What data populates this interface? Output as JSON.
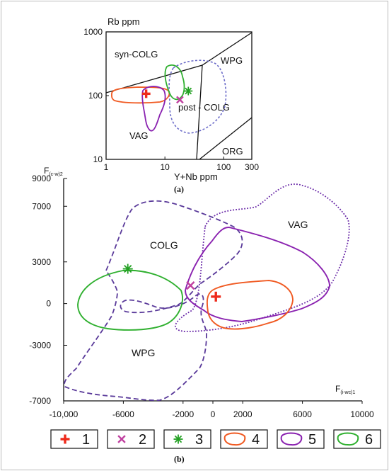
{
  "figure": {
    "panel_a_label": "(a)",
    "panel_b_label": "(b)"
  },
  "colors": {
    "sym1": "#ee2a1b",
    "sym2": "#c040a0",
    "sym3": "#22a022",
    "sym4": "#f05a22",
    "sym5": "#8a22b0",
    "sym6": "#30b030",
    "dashed_field": "#5a3a9a",
    "panel_a_dashed": "#6a6ac8"
  },
  "chart_data": [
    {
      "type": "scatter",
      "panel": "a",
      "xscale": "log",
      "yscale": "log",
      "xlabel": "Y+Nb ppm",
      "ylabel": "Rb ppm",
      "xlim": [
        1,
        300
      ],
      "ylim": [
        10,
        1000
      ],
      "x_ticks": [
        "1",
        "10",
        "100",
        "300"
      ],
      "y_ticks": [
        "10",
        "100",
        "1000"
      ],
      "field_labels": [
        "syn-COLG",
        "WPG",
        "post - COLG",
        "VAG",
        "ORG"
      ],
      "points": [
        {
          "symbol": "1",
          "x": 4.8,
          "y": 107
        },
        {
          "symbol": "2",
          "x": 18,
          "y": 86
        },
        {
          "symbol": "3",
          "x": 25,
          "y": 118
        }
      ],
      "grid": false
    },
    {
      "type": "scatter",
      "panel": "b",
      "xlabel": "F(i-wc)1",
      "ylabel": "F(c-w)2",
      "xlabel_main": "F",
      "xlabel_sub": "(i-wc)1",
      "ylabel_main": "F",
      "ylabel_sub": "(c-w)2",
      "xlim": [
        -10000,
        10000
      ],
      "ylim": [
        -7000,
        9000
      ],
      "x_ticks": [
        "-10,000",
        "-6000",
        "-2000",
        "0",
        "2000",
        "6000",
        "10000"
      ],
      "y_ticks": [
        "9000",
        "7000",
        "3000",
        "0",
        "-3000",
        "-7000"
      ],
      "field_labels": [
        "COLG",
        "VAG",
        "WPG"
      ],
      "points": [
        {
          "symbol": "1",
          "x": 200,
          "y": 500
        },
        {
          "symbol": "2",
          "x": -1500,
          "y": 1300
        },
        {
          "symbol": "3",
          "x": -5700,
          "y": 2500
        }
      ],
      "grid": false
    }
  ],
  "legend": {
    "placement": "bottom",
    "items": [
      {
        "label": "1",
        "symbol": "plus",
        "color": "#ee2a1b"
      },
      {
        "label": "2",
        "symbol": "cross",
        "color": "#c040a0"
      },
      {
        "label": "3",
        "symbol": "star",
        "color": "#22a022"
      },
      {
        "label": "4",
        "symbol": "loop",
        "color": "#f05a22"
      },
      {
        "label": "5",
        "symbol": "loop",
        "color": "#8a22b0"
      },
      {
        "label": "6",
        "symbol": "loop",
        "color": "#30b030"
      }
    ]
  }
}
